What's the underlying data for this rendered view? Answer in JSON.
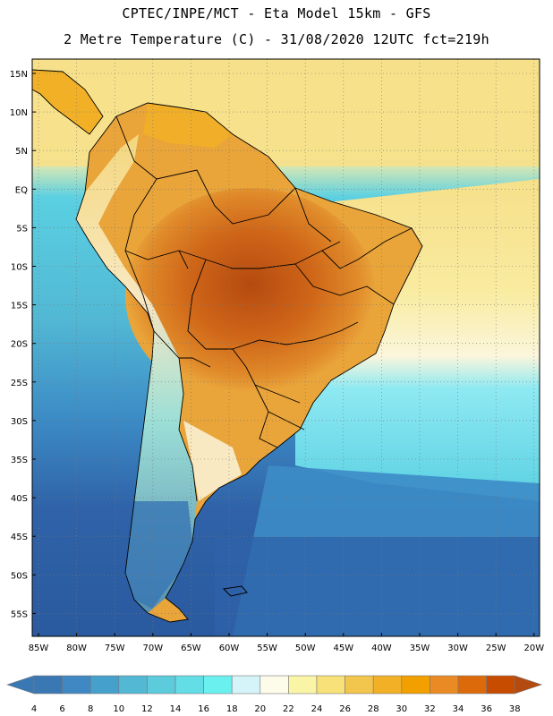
{
  "header": {
    "line1": "CPTEC/INPE/MCT -  Eta Model 15km - GFS",
    "line2": "2 Metre Temperature (C) - 31/08/2020 12UTC fct=219h"
  },
  "map": {
    "region": "South America",
    "lat_labels": [
      "15N",
      "10N",
      "5N",
      "EQ",
      "5S",
      "10S",
      "15S",
      "20S",
      "25S",
      "30S",
      "35S",
      "40S",
      "45S",
      "50S",
      "55S"
    ],
    "lon_labels": [
      "85W",
      "80W",
      "75W",
      "70W",
      "65W",
      "60W",
      "55W",
      "50W",
      "45W",
      "40W",
      "35W",
      "30W",
      "25W",
      "20W"
    ],
    "colors": {
      "ocean_deep": "#2f62a8",
      "ocean_mid": "#3c8cc6",
      "ocean_cyan": "#5ad0e2",
      "ocean_light": "#8ee9f2",
      "ocean_pale": "#d8f3f7",
      "land_yellow": "#f6e08a",
      "land_orange": "#e9a43a",
      "land_hot": "#cf6618",
      "land_hottest": "#b54a10"
    }
  },
  "legend": {
    "ticks": [
      "4",
      "6",
      "8",
      "10",
      "12",
      "14",
      "16",
      "18",
      "20",
      "22",
      "24",
      "26",
      "28",
      "30",
      "32",
      "34",
      "36",
      "38"
    ],
    "colors": [
      "#3a78b4",
      "#3f88c4",
      "#46a0cc",
      "#52b8d4",
      "#5ccbdc",
      "#63dde6",
      "#6bf0f0",
      "#d5f4f9",
      "#fdfbea",
      "#faf5a6",
      "#f8e178",
      "#f2c54c",
      "#f1b025",
      "#f1a000",
      "#e98a24",
      "#dd6a0a",
      "#c74c00"
    ],
    "left_arrow_color": "#3a78b4",
    "right_arrow_color": "#b54a10"
  }
}
